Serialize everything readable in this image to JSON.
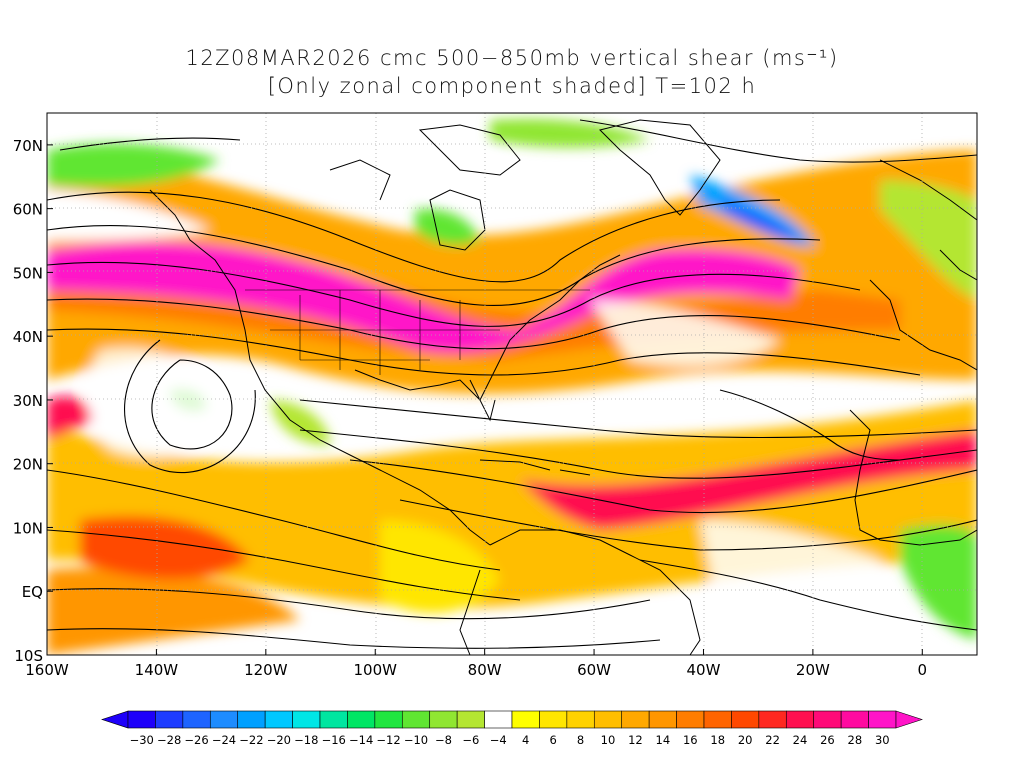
{
  "title_line1": "12Z08MAR2026 cmc 500−850mb vertical shear (ms⁻¹)",
  "title_line2": "[Only zonal component shaded] T=102 h",
  "chart_data": {
    "type": "heatmap",
    "quantity": "500-850mb vertical shear, zonal component",
    "units": "ms⁻¹",
    "lon_range": [
      -160,
      10
    ],
    "lat_range": [
      -10,
      75
    ],
    "lat_ticks": [
      "70N",
      "60N",
      "50N",
      "40N",
      "30N",
      "20N",
      "10N",
      "EQ",
      "10S"
    ],
    "lon_ticks": [
      "160W",
      "140W",
      "120W",
      "100W",
      "80W",
      "60W",
      "40W",
      "20W",
      "0"
    ],
    "colorbar_labels": [
      "-30",
      "-28",
      "-26",
      "-24",
      "-22",
      "-20",
      "-18",
      "-16",
      "-14",
      "-12",
      "-10",
      "-8",
      "-6",
      "-4",
      "4",
      "6",
      "8",
      "10",
      "12",
      "14",
      "16",
      "18",
      "20",
      "22",
      "24",
      "26",
      "28",
      "30"
    ],
    "colorbar_colors": [
      "#1e00fa",
      "#1e3cff",
      "#1e64ff",
      "#1e8cff",
      "#00a0ff",
      "#00c8ff",
      "#00e6e6",
      "#00e6a0",
      "#00e664",
      "#20e640",
      "#60e632",
      "#90e632",
      "#b4e632",
      "#ffffff",
      "#ffff00",
      "#ffe600",
      "#ffd200",
      "#ffbe00",
      "#ffa800",
      "#ff9600",
      "#ff7d00",
      "#ff6400",
      "#ff4800",
      "#ff2820",
      "#ff1050",
      "#ff0a78",
      "#ff0aa0",
      "#ff14c8"
    ]
  }
}
